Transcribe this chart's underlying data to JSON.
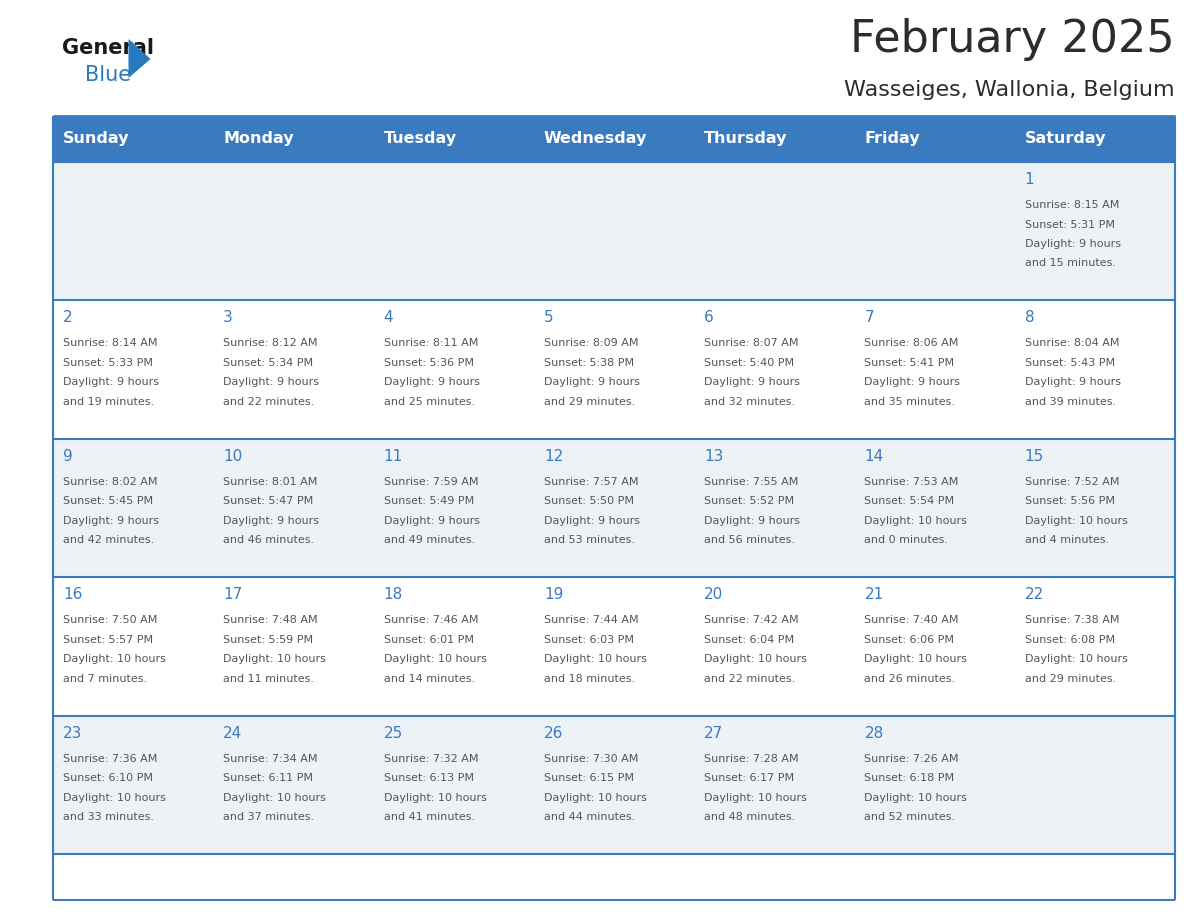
{
  "title": "February 2025",
  "subtitle": "Wasseiges, Wallonia, Belgium",
  "header_bg": "#3a7abf",
  "header_text_color": "#ffffff",
  "cell_bg_odd": "#edf2f7",
  "cell_bg_even": "#ffffff",
  "day_headers": [
    "Sunday",
    "Monday",
    "Tuesday",
    "Wednesday",
    "Thursday",
    "Friday",
    "Saturday"
  ],
  "text_color": "#555555",
  "day_number_color": "#3a7abf",
  "line_color": "#3a7abf",
  "logo_general_color": "#1a1a1a",
  "logo_blue_color": "#2979c0",
  "calendar_data": [
    [
      null,
      null,
      null,
      null,
      null,
      null,
      {
        "day": 1,
        "sunrise": "8:15 AM",
        "sunset": "5:31 PM",
        "daylight_h": "9 hours",
        "daylight_m": "15 minutes"
      }
    ],
    [
      {
        "day": 2,
        "sunrise": "8:14 AM",
        "sunset": "5:33 PM",
        "daylight_h": "9 hours",
        "daylight_m": "19 minutes"
      },
      {
        "day": 3,
        "sunrise": "8:12 AM",
        "sunset": "5:34 PM",
        "daylight_h": "9 hours",
        "daylight_m": "22 minutes"
      },
      {
        "day": 4,
        "sunrise": "8:11 AM",
        "sunset": "5:36 PM",
        "daylight_h": "9 hours",
        "daylight_m": "25 minutes"
      },
      {
        "day": 5,
        "sunrise": "8:09 AM",
        "sunset": "5:38 PM",
        "daylight_h": "9 hours",
        "daylight_m": "29 minutes"
      },
      {
        "day": 6,
        "sunrise": "8:07 AM",
        "sunset": "5:40 PM",
        "daylight_h": "9 hours",
        "daylight_m": "32 minutes"
      },
      {
        "day": 7,
        "sunrise": "8:06 AM",
        "sunset": "5:41 PM",
        "daylight_h": "9 hours",
        "daylight_m": "35 minutes"
      },
      {
        "day": 8,
        "sunrise": "8:04 AM",
        "sunset": "5:43 PM",
        "daylight_h": "9 hours",
        "daylight_m": "39 minutes"
      }
    ],
    [
      {
        "day": 9,
        "sunrise": "8:02 AM",
        "sunset": "5:45 PM",
        "daylight_h": "9 hours",
        "daylight_m": "42 minutes"
      },
      {
        "day": 10,
        "sunrise": "8:01 AM",
        "sunset": "5:47 PM",
        "daylight_h": "9 hours",
        "daylight_m": "46 minutes"
      },
      {
        "day": 11,
        "sunrise": "7:59 AM",
        "sunset": "5:49 PM",
        "daylight_h": "9 hours",
        "daylight_m": "49 minutes"
      },
      {
        "day": 12,
        "sunrise": "7:57 AM",
        "sunset": "5:50 PM",
        "daylight_h": "9 hours",
        "daylight_m": "53 minutes"
      },
      {
        "day": 13,
        "sunrise": "7:55 AM",
        "sunset": "5:52 PM",
        "daylight_h": "9 hours",
        "daylight_m": "56 minutes"
      },
      {
        "day": 14,
        "sunrise": "7:53 AM",
        "sunset": "5:54 PM",
        "daylight_h": "10 hours",
        "daylight_m": "0 minutes"
      },
      {
        "day": 15,
        "sunrise": "7:52 AM",
        "sunset": "5:56 PM",
        "daylight_h": "10 hours",
        "daylight_m": "4 minutes"
      }
    ],
    [
      {
        "day": 16,
        "sunrise": "7:50 AM",
        "sunset": "5:57 PM",
        "daylight_h": "10 hours",
        "daylight_m": "7 minutes"
      },
      {
        "day": 17,
        "sunrise": "7:48 AM",
        "sunset": "5:59 PM",
        "daylight_h": "10 hours",
        "daylight_m": "11 minutes"
      },
      {
        "day": 18,
        "sunrise": "7:46 AM",
        "sunset": "6:01 PM",
        "daylight_h": "10 hours",
        "daylight_m": "14 minutes"
      },
      {
        "day": 19,
        "sunrise": "7:44 AM",
        "sunset": "6:03 PM",
        "daylight_h": "10 hours",
        "daylight_m": "18 minutes"
      },
      {
        "day": 20,
        "sunrise": "7:42 AM",
        "sunset": "6:04 PM",
        "daylight_h": "10 hours",
        "daylight_m": "22 minutes"
      },
      {
        "day": 21,
        "sunrise": "7:40 AM",
        "sunset": "6:06 PM",
        "daylight_h": "10 hours",
        "daylight_m": "26 minutes"
      },
      {
        "day": 22,
        "sunrise": "7:38 AM",
        "sunset": "6:08 PM",
        "daylight_h": "10 hours",
        "daylight_m": "29 minutes"
      }
    ],
    [
      {
        "day": 23,
        "sunrise": "7:36 AM",
        "sunset": "6:10 PM",
        "daylight_h": "10 hours",
        "daylight_m": "33 minutes"
      },
      {
        "day": 24,
        "sunrise": "7:34 AM",
        "sunset": "6:11 PM",
        "daylight_h": "10 hours",
        "daylight_m": "37 minutes"
      },
      {
        "day": 25,
        "sunrise": "7:32 AM",
        "sunset": "6:13 PM",
        "daylight_h": "10 hours",
        "daylight_m": "41 minutes"
      },
      {
        "day": 26,
        "sunrise": "7:30 AM",
        "sunset": "6:15 PM",
        "daylight_h": "10 hours",
        "daylight_m": "44 minutes"
      },
      {
        "day": 27,
        "sunrise": "7:28 AM",
        "sunset": "6:17 PM",
        "daylight_h": "10 hours",
        "daylight_m": "48 minutes"
      },
      {
        "day": 28,
        "sunrise": "7:26 AM",
        "sunset": "6:18 PM",
        "daylight_h": "10 hours",
        "daylight_m": "52 minutes"
      },
      null
    ]
  ]
}
